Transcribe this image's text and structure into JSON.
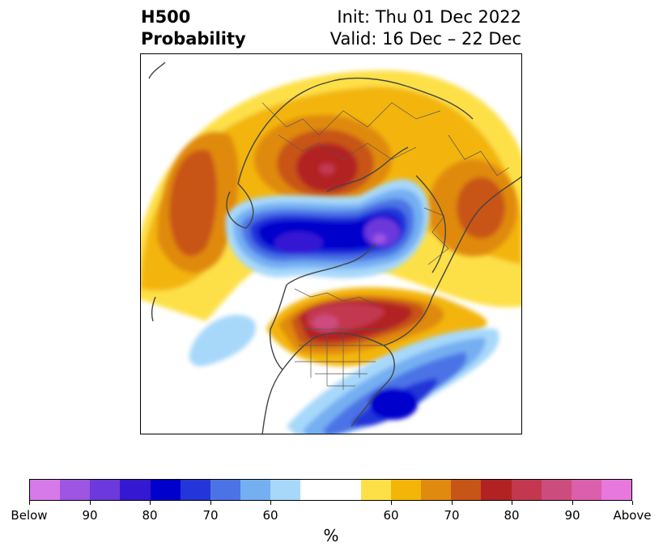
{
  "title": {
    "left_line1": "H500",
    "left_line2": "Probability",
    "right_line1": "Init: Thu 01 Dec 2022",
    "right_line2": "Valid: 16 Dec – 22 Dec"
  },
  "colorbar": {
    "unit": "%",
    "colors": [
      "#d77ae9",
      "#9e55e2",
      "#6c39dc",
      "#3518d2",
      "#0000cc",
      "#2436d9",
      "#4c73e6",
      "#74aff2",
      "#a7d8fa",
      "#ffffff",
      "#ffffff",
      "#fde047",
      "#f3b508",
      "#e08a10",
      "#c85518",
      "#b22222",
      "#c3384f",
      "#cd4c7e",
      "#db5fad",
      "#e778de"
    ],
    "tick_labels": [
      "Below",
      "90",
      "80",
      "70",
      "60",
      "60",
      "70",
      "80",
      "90",
      "Above"
    ]
  },
  "map": {
    "region": "Northern Hemisphere (polar view)"
  }
}
